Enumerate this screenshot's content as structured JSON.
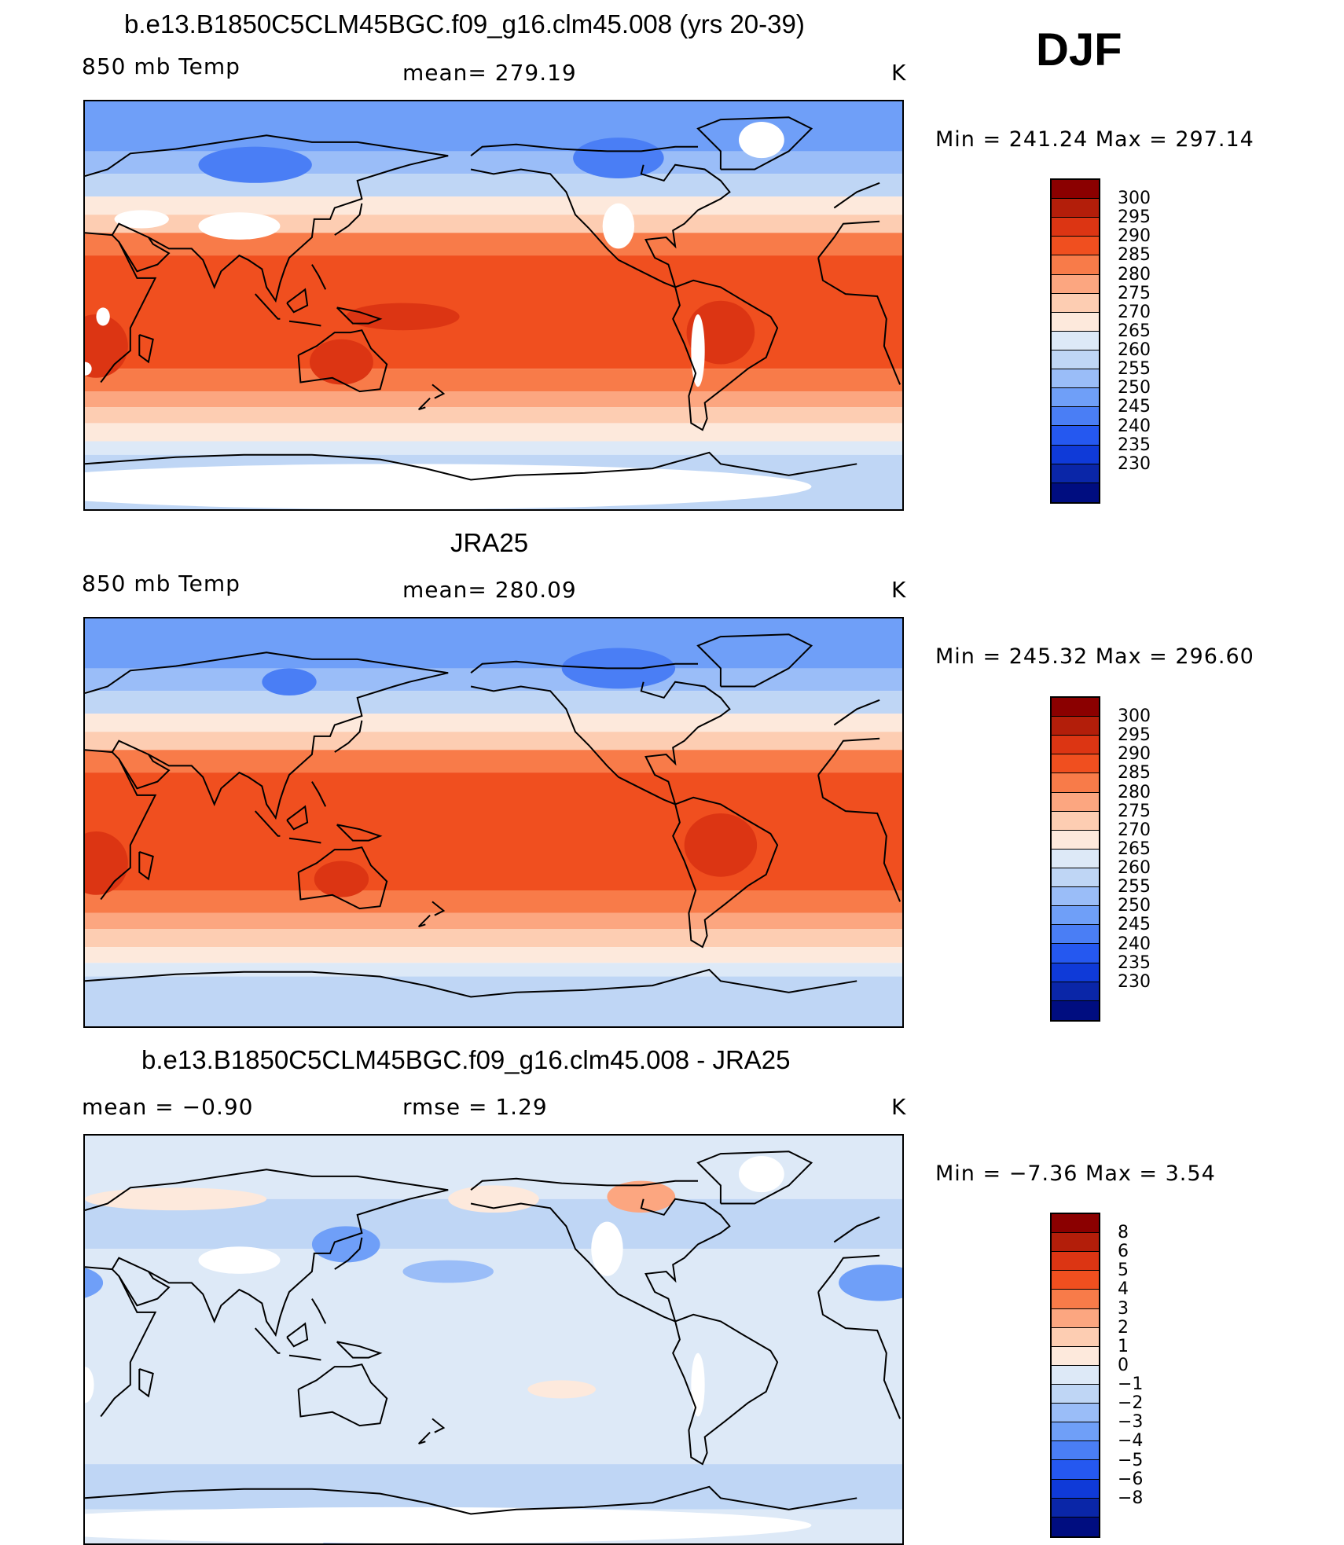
{
  "season": "DJF",
  "colors": {
    "temp_scale": [
      "#8b0000",
      "#b31e0a",
      "#dc3513",
      "#f04f1f",
      "#f87b49",
      "#fca680",
      "#fdcdb2",
      "#fde9dc",
      "#dde9f7",
      "#bfd6f5",
      "#9abdf8",
      "#6f9ff8",
      "#4a7ef5",
      "#2558f0",
      "#0f3ad8",
      "#0a26a8",
      "#000d80"
    ],
    "diff_scale": [
      "#8b0000",
      "#b31e0a",
      "#dc3513",
      "#f04f1f",
      "#f87b49",
      "#fca680",
      "#fdcdb2",
      "#fde9dc",
      "#dde9f7",
      "#bfd6f5",
      "#9abdf8",
      "#6f9ff8",
      "#4a7ef5",
      "#2558f0",
      "#0f3ad8",
      "#0a26a8",
      "#000d80"
    ],
    "missing": "#ffffff",
    "coast": "#000000"
  },
  "chart_data": [
    {
      "type": "heatmap",
      "title": "b.e13.B1850C5CLM45BGC.f09_g16.clm45.008 (yrs 20-39)",
      "left_label": "850 mb Temp",
      "center_label": "mean=  279.19",
      "units": "K",
      "minmax": "Min  =  241.24  Max  =  297.14",
      "min": 241.24,
      "max": 297.14,
      "mean": 279.19,
      "colorbar_levels": [
        "300",
        "295",
        "290",
        "285",
        "280",
        "275",
        "270",
        "265",
        "260",
        "255",
        "250",
        "245",
        "240",
        "235",
        "230"
      ],
      "field": "model",
      "bands": [
        {
          "lat_from": 90,
          "lat_to": 68,
          "level": 11
        },
        {
          "lat_from": 68,
          "lat_to": 58,
          "level": 10
        },
        {
          "lat_from": 58,
          "lat_to": 48,
          "level": 9
        },
        {
          "lat_from": 48,
          "lat_to": 40,
          "level": 7
        },
        {
          "lat_from": 40,
          "lat_to": 32,
          "level": 6
        },
        {
          "lat_from": 32,
          "lat_to": 22,
          "level": 4
        },
        {
          "lat_from": 22,
          "lat_to": -28,
          "level": 3
        },
        {
          "lat_from": -28,
          "lat_to": -38,
          "level": 4
        },
        {
          "lat_from": -38,
          "lat_to": -45,
          "level": 5
        },
        {
          "lat_from": -45,
          "lat_to": -52,
          "level": 6
        },
        {
          "lat_from": -52,
          "lat_to": -60,
          "level": 7
        },
        {
          "lat_from": -60,
          "lat_to": -66,
          "level": 8
        },
        {
          "lat_from": -66,
          "lat_to": -90,
          "level": 9
        }
      ],
      "blobs": [
        {
          "lon": 25,
          "lat": -18,
          "rx": 14,
          "ry": 14,
          "level": 2
        },
        {
          "lon": 133,
          "lat": -25,
          "rx": 14,
          "ry": 10,
          "level": 2
        },
        {
          "lon": 160,
          "lat": -5,
          "rx": 25,
          "ry": 6,
          "level": 2
        },
        {
          "lon": 300,
          "lat": -12,
          "rx": 15,
          "ry": 14,
          "level": 2
        },
        {
          "lon": 95,
          "lat": 62,
          "rx": 25,
          "ry": 8,
          "level": 12
        },
        {
          "lon": 255,
          "lat": 65,
          "rx": 20,
          "ry": 9,
          "level": 12
        }
      ],
      "missing": [
        {
          "lon": 88,
          "lat": 35,
          "rx": 18,
          "ry": 6
        },
        {
          "lon": 45,
          "lat": 38,
          "rx": 12,
          "ry": 4
        },
        {
          "lon": 318,
          "lat": 73,
          "rx": 10,
          "ry": 8
        },
        {
          "lon": 255,
          "lat": 35,
          "rx": 7,
          "ry": 10
        },
        {
          "lon": 290,
          "lat": -20,
          "rx": 3,
          "ry": 16
        },
        {
          "lon": 28,
          "lat": -5,
          "rx": 3,
          "ry": 4
        },
        {
          "lon": 20,
          "lat": -28,
          "rx": 3,
          "ry": 3
        },
        {
          "lon": 160,
          "lat": -80,
          "rx": 180,
          "ry": 10
        }
      ]
    },
    {
      "type": "heatmap",
      "title": "JRA25",
      "left_label": "850 mb Temp",
      "center_label": "mean=  280.09",
      "units": "K",
      "minmax": "Min  =  245.32  Max  =  296.60",
      "min": 245.32,
      "max": 296.6,
      "mean": 280.09,
      "colorbar_levels": [
        "300",
        "295",
        "290",
        "285",
        "280",
        "275",
        "270",
        "265",
        "260",
        "255",
        "250",
        "245",
        "240",
        "235",
        "230"
      ],
      "field": "obs",
      "bands": [
        {
          "lat_from": 90,
          "lat_to": 68,
          "level": 11
        },
        {
          "lat_from": 68,
          "lat_to": 58,
          "level": 10
        },
        {
          "lat_from": 58,
          "lat_to": 48,
          "level": 9
        },
        {
          "lat_from": 48,
          "lat_to": 40,
          "level": 7
        },
        {
          "lat_from": 40,
          "lat_to": 32,
          "level": 6
        },
        {
          "lat_from": 32,
          "lat_to": 22,
          "level": 4
        },
        {
          "lat_from": 22,
          "lat_to": -30,
          "level": 3
        },
        {
          "lat_from": -30,
          "lat_to": -40,
          "level": 4
        },
        {
          "lat_from": -40,
          "lat_to": -47,
          "level": 5
        },
        {
          "lat_from": -47,
          "lat_to": -55,
          "level": 6
        },
        {
          "lat_from": -55,
          "lat_to": -62,
          "level": 7
        },
        {
          "lat_from": -62,
          "lat_to": -68,
          "level": 8
        },
        {
          "lat_from": -68,
          "lat_to": -90,
          "level": 9
        }
      ],
      "blobs": [
        {
          "lon": 25,
          "lat": -18,
          "rx": 14,
          "ry": 14,
          "level": 2
        },
        {
          "lon": 133,
          "lat": -25,
          "rx": 12,
          "ry": 8,
          "level": 2
        },
        {
          "lon": 300,
          "lat": -10,
          "rx": 16,
          "ry": 14,
          "level": 2
        },
        {
          "lon": 110,
          "lat": 62,
          "rx": 12,
          "ry": 6,
          "level": 12
        },
        {
          "lon": 255,
          "lat": 68,
          "rx": 25,
          "ry": 9,
          "level": 12
        }
      ],
      "missing": []
    },
    {
      "type": "heatmap",
      "title": "b.e13.B1850C5CLM45BGC.f09_g16.clm45.008 - JRA25",
      "left_label": "mean  =    −0.90",
      "center_label": "rmse  =     1.29",
      "units": "K",
      "minmax": "Min  =    −7.36  Max  =      3.54",
      "min": -7.36,
      "max": 3.54,
      "mean": -0.9,
      "rmse": 1.29,
      "colorbar_levels": [
        "8",
        "6",
        "5",
        "4",
        "3",
        "2",
        "1",
        "0",
        "−1",
        "−2",
        "−3",
        "−4",
        "−5",
        "−6",
        "−8"
      ],
      "field": "diff",
      "bands": [
        {
          "lat_from": 90,
          "lat_to": 62,
          "level": 8
        },
        {
          "lat_from": 62,
          "lat_to": 40,
          "level": 9
        },
        {
          "lat_from": 40,
          "lat_to": -55,
          "level": 8
        },
        {
          "lat_from": -55,
          "lat_to": -75,
          "level": 9
        },
        {
          "lat_from": -75,
          "lat_to": -90,
          "level": 8
        }
      ],
      "blobs": [
        {
          "lon": 265,
          "lat": 63,
          "rx": 15,
          "ry": 7,
          "level": 5
        },
        {
          "lon": 200,
          "lat": 62,
          "rx": 20,
          "ry": 6,
          "level": 7
        },
        {
          "lon": 60,
          "lat": 62,
          "rx": 40,
          "ry": 5,
          "level": 7
        },
        {
          "lon": 135,
          "lat": 42,
          "rx": 15,
          "ry": 8,
          "level": 11
        },
        {
          "lon": 10,
          "lat": 25,
          "rx": 18,
          "ry": 8,
          "level": 11
        },
        {
          "lon": 180,
          "lat": 30,
          "rx": 20,
          "ry": 5,
          "level": 10
        },
        {
          "lon": 230,
          "lat": -22,
          "rx": 15,
          "ry": 4,
          "level": 7
        },
        {
          "lon": 150,
          "lat": -90,
          "rx": 25,
          "ry": 6,
          "level": 12
        }
      ],
      "missing": [
        {
          "lon": 88,
          "lat": 35,
          "rx": 18,
          "ry": 6
        },
        {
          "lon": 318,
          "lat": 73,
          "rx": 10,
          "ry": 8
        },
        {
          "lon": 250,
          "lat": 40,
          "rx": 7,
          "ry": 12
        },
        {
          "lon": 290,
          "lat": -20,
          "rx": 3,
          "ry": 14
        },
        {
          "lon": 20,
          "lat": -20,
          "rx": 4,
          "ry": 8
        },
        {
          "lon": 160,
          "lat": -82,
          "rx": 180,
          "ry": 8
        }
      ]
    }
  ]
}
